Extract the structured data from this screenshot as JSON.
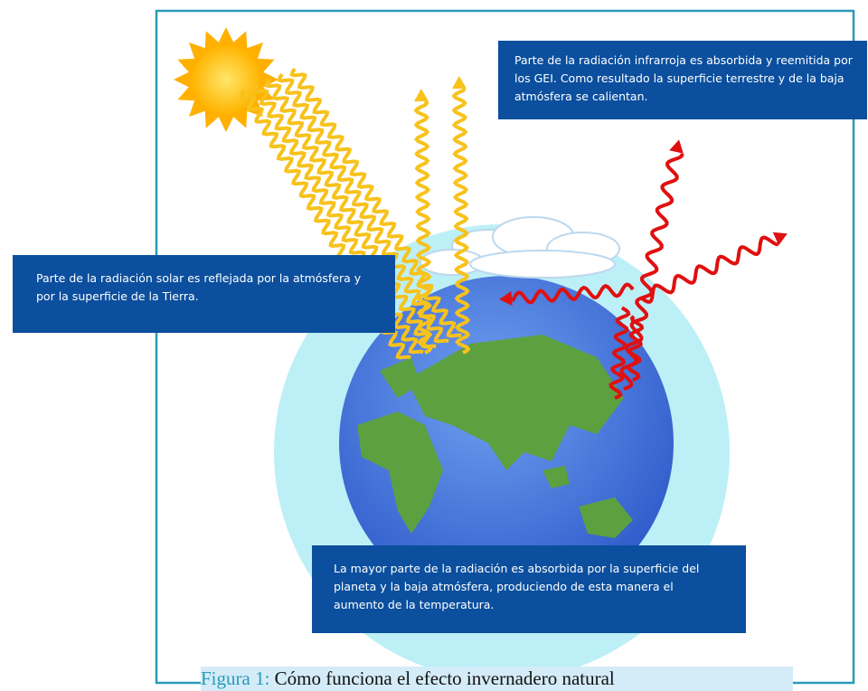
{
  "callouts": {
    "top_right": "Parte de la radiación infrarroja es absorbida y reemitida por los GEI. Como resultado la superficie terrestre y de la baja atmósfera se calientan.",
    "left": "Parte de la radiación solar es reflejada por la atmósfera y por la superficie de la Tierra.",
    "bottom": "La mayor parte de la radiación es absorbida por la superficie del planeta y la baja atmósfera, produciendo de esta manera el aumento de la temperatura."
  },
  "caption": {
    "label": "Figura 1:",
    "title": "Cómo funciona el efecto invernadero natural"
  }
}
